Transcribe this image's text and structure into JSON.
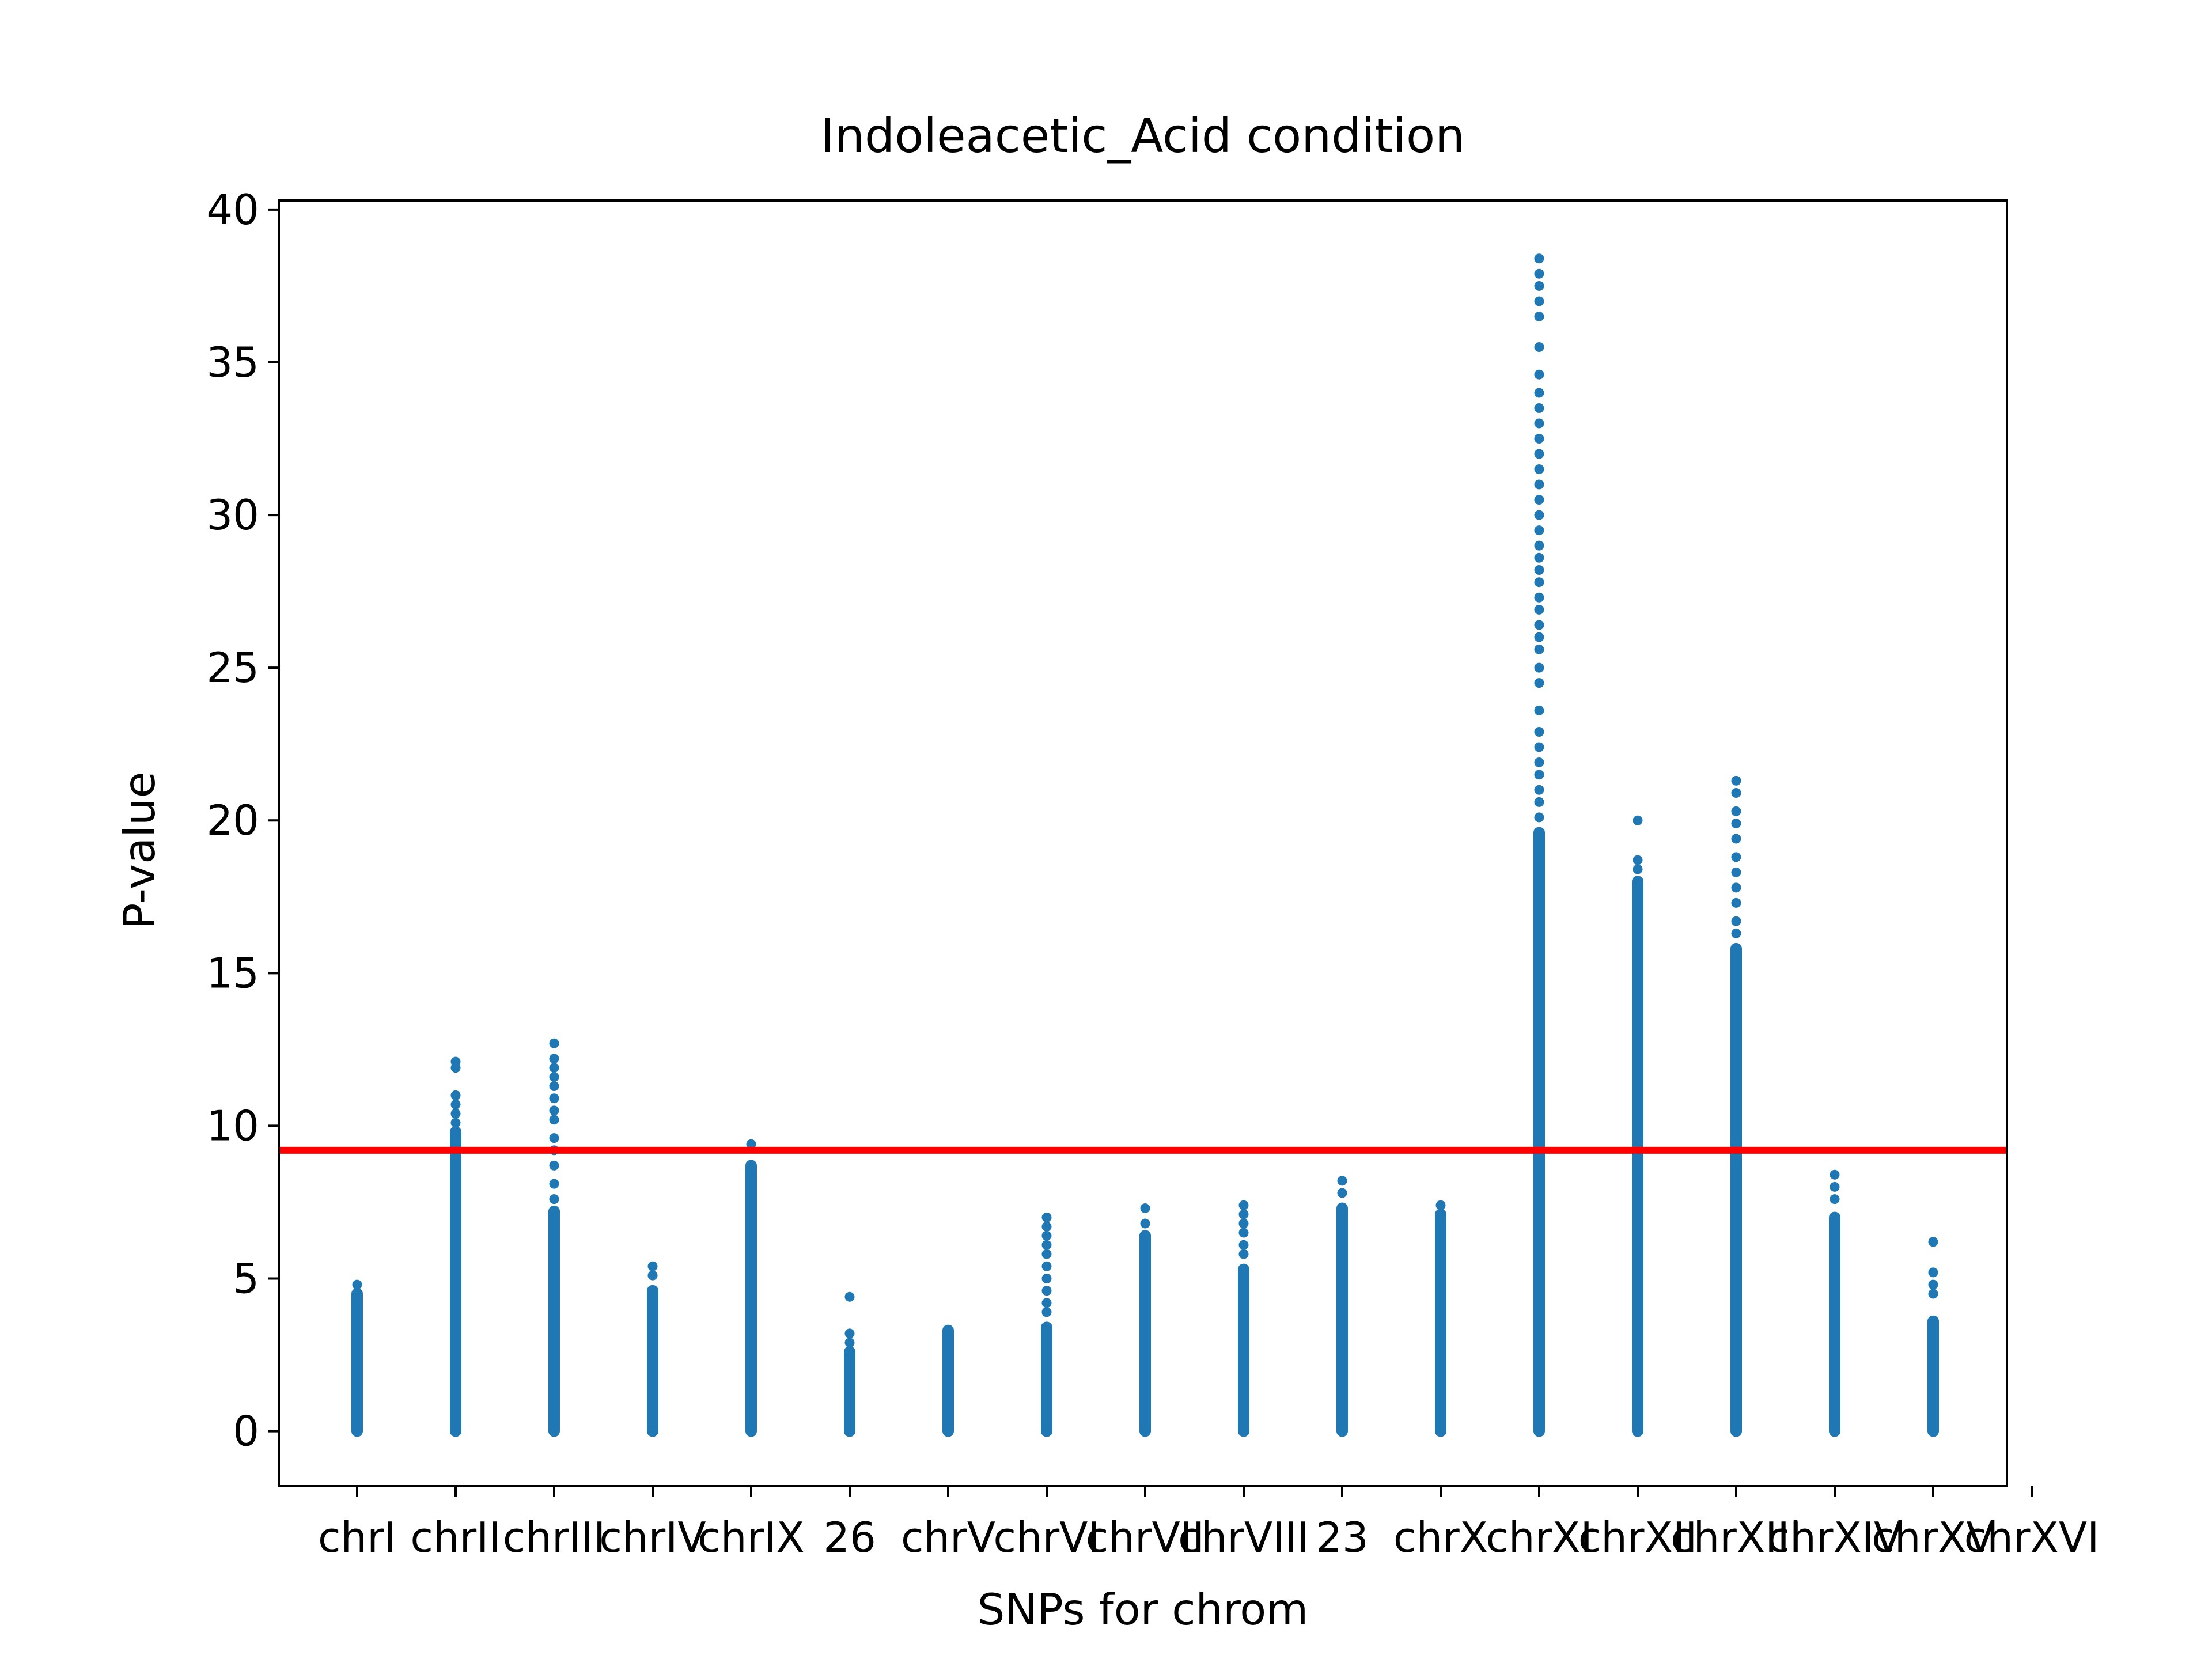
{
  "chart_data": {
    "type": "scatter",
    "title": "Indoleacetic_Acid condition",
    "xlabel": "SNPs for chrom",
    "ylabel": "P-value",
    "ylim": [
      -1.8,
      40.3
    ],
    "yticks": [
      0,
      5,
      10,
      15,
      20,
      25,
      30,
      35,
      40
    ],
    "grid": false,
    "categories": [
      "chrI",
      "chrII",
      "chrIII",
      "chrIV",
      "chrIX",
      "26",
      "chrV",
      "chrVI",
      "chrVII",
      "chrVIII",
      "23",
      "chrX",
      "chrXI",
      "chrXII",
      "chrXIII",
      "chrXIV",
      "chrXV",
      "chrXVI"
    ],
    "series": [
      {
        "color": "#1f77b4",
        "points": [
          {
            "category": "chrI",
            "min": 0,
            "dense_max": 4.5,
            "outliers": [
              4.8
            ]
          },
          {
            "category": "chrII",
            "min": 0,
            "dense_max": 9.8,
            "outliers": [
              10.1,
              10.4,
              10.7,
              11.0,
              11.9,
              12.1
            ]
          },
          {
            "category": "chrIII",
            "min": 0,
            "dense_max": 7.2,
            "outliers": [
              7.6,
              8.1,
              8.7,
              9.2,
              9.6,
              10.2,
              10.5,
              10.9,
              11.3,
              11.6,
              11.9,
              12.2,
              12.7
            ]
          },
          {
            "category": "chrIV",
            "min": 0,
            "dense_max": 4.6,
            "outliers": [
              5.1,
              5.4
            ]
          },
          {
            "category": "chrIX",
            "min": 0,
            "dense_max": 8.7,
            "outliers": [
              9.4
            ]
          },
          {
            "category": "26",
            "min": 0,
            "dense_max": 2.6,
            "outliers": [
              2.9,
              3.2,
              4.4
            ]
          },
          {
            "category": "chrV",
            "min": 0,
            "dense_max": 3.3,
            "outliers": []
          },
          {
            "category": "chrVI",
            "min": 0,
            "dense_max": 3.4,
            "outliers": [
              3.9,
              4.2,
              4.6,
              5.0,
              5.4,
              5.8,
              6.1,
              6.4,
              6.7,
              7.0
            ]
          },
          {
            "category": "chrVII",
            "min": 0,
            "dense_max": 6.4,
            "outliers": [
              6.8,
              7.3
            ]
          },
          {
            "category": "chrVIII",
            "min": 0,
            "dense_max": 5.3,
            "outliers": [
              5.8,
              6.1,
              6.5,
              6.8,
              7.1,
              7.4
            ]
          },
          {
            "category": "23",
            "min": 0,
            "dense_max": 7.3,
            "outliers": [
              7.8,
              8.2
            ]
          },
          {
            "category": "chrX",
            "min": 0,
            "dense_max": 7.1,
            "outliers": [
              7.4
            ]
          },
          {
            "category": "chrXI",
            "min": 0,
            "dense_max": 19.6,
            "outliers": [
              20.1,
              20.6,
              21.0,
              21.5,
              21.9,
              22.4,
              22.9,
              23.6,
              24.5,
              25.0,
              25.6,
              26.0,
              26.4,
              26.9,
              27.3,
              27.8,
              28.2,
              28.6,
              29.0,
              29.5,
              30.0,
              30.5,
              31.0,
              31.5,
              32.0,
              32.5,
              33.0,
              33.5,
              34.0,
              34.6,
              35.5,
              36.5,
              37.0,
              37.5,
              37.9,
              38.4
            ]
          },
          {
            "category": "chrXII",
            "min": 0,
            "dense_max": 18.0,
            "outliers": [
              18.4,
              18.7,
              20.0
            ]
          },
          {
            "category": "chrXIII",
            "min": 0,
            "dense_max": 15.8,
            "outliers": [
              16.3,
              16.7,
              17.3,
              17.8,
              18.3,
              18.8,
              19.4,
              19.9,
              20.3,
              20.9,
              21.3
            ]
          },
          {
            "category": "chrXIV",
            "min": 0,
            "dense_max": 7.0,
            "outliers": [
              7.6,
              8.0,
              8.4
            ]
          },
          {
            "category": "chrXV",
            "min": 0,
            "dense_max": 3.6,
            "outliers": [
              4.5,
              4.8,
              5.2,
              6.2
            ]
          }
        ]
      }
    ],
    "threshold_line": {
      "y": 9.2,
      "color": "#ff0000"
    }
  }
}
